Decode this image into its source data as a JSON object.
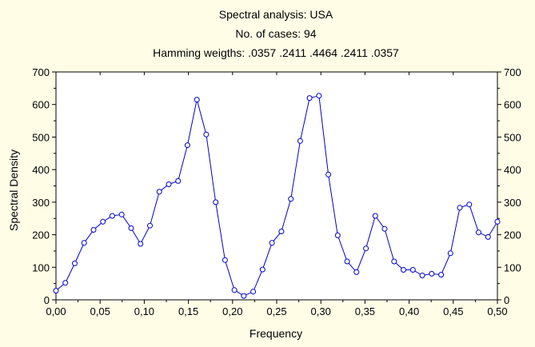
{
  "chart_data": {
    "type": "line",
    "title_lines": [
      "Spectral analysis: USA",
      "No. of cases: 94",
      "Hamming weigths: .0357 .2411 .4464 .2411 .0357"
    ],
    "xlabel": "Frequency",
    "ylabel": "Spectral Density",
    "xlim": [
      0,
      0.5
    ],
    "ylim": [
      0,
      700
    ],
    "x_ticks": [
      "0,00",
      "0,05",
      "0,10",
      "0,15",
      "0,20",
      "0,25",
      "0,30",
      "0,35",
      "0,40",
      "0,45",
      "0,50"
    ],
    "y_ticks": [
      "0",
      "100",
      "200",
      "300",
      "400",
      "500",
      "600",
      "700"
    ],
    "grid": false,
    "legend": "none",
    "colors": {
      "series": "#0000cc",
      "background": "#fffde6",
      "plot_area": "#ffffff",
      "axes": "#000000"
    },
    "series": [
      {
        "x": [
          0.0,
          0.0106,
          0.0213,
          0.0319,
          0.0426,
          0.0532,
          0.0638,
          0.0745,
          0.0851,
          0.0957,
          0.1064,
          0.117,
          0.1277,
          0.1383,
          0.1489,
          0.1596,
          0.1702,
          0.1809,
          0.1915,
          0.2021,
          0.2128,
          0.2234,
          0.234,
          0.2447,
          0.2553,
          0.266,
          0.2766,
          0.2872,
          0.2979,
          0.3085,
          0.3191,
          0.3298,
          0.3404,
          0.3511,
          0.3617,
          0.3723,
          0.383,
          0.3936,
          0.4043,
          0.4149,
          0.4255,
          0.4362,
          0.4468,
          0.4574,
          0.4681,
          0.4787,
          0.4894,
          0.5
        ],
        "values": [
          28,
          52,
          112,
          175,
          215,
          240,
          258,
          262,
          220,
          172,
          228,
          332,
          355,
          365,
          475,
          615,
          508,
          300,
          122,
          30,
          12,
          25,
          93,
          175,
          210,
          310,
          488,
          620,
          627,
          385,
          198,
          118,
          85,
          158,
          258,
          218,
          118,
          92,
          92,
          75,
          80,
          77,
          143,
          283,
          293,
          207,
          193,
          240
        ]
      }
    ]
  }
}
